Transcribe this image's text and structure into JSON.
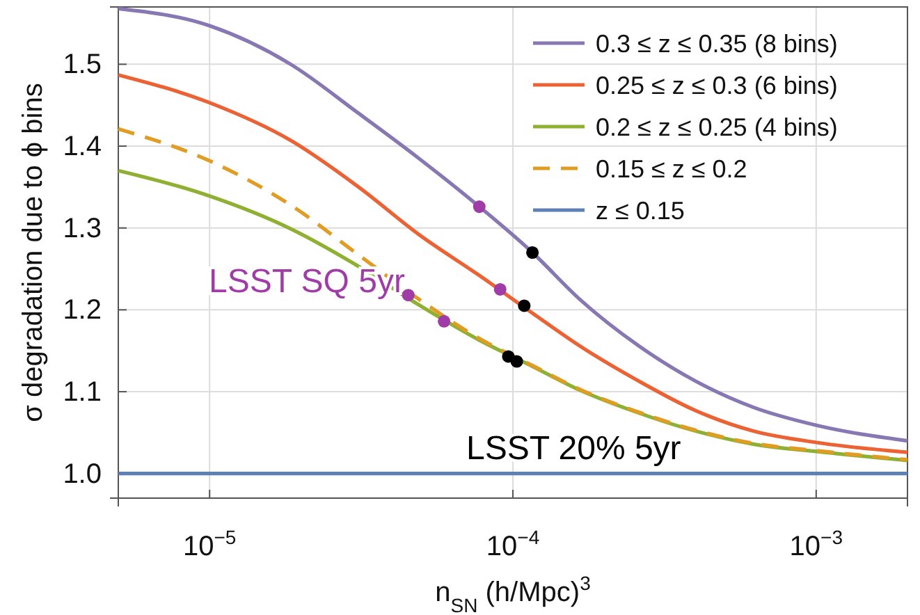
{
  "chart_data": {
    "type": "line",
    "xlabel": "n$_{SN}$ (h/Mpc)$^{3}$",
    "ylabel": "σ degradation due to ϕ bins",
    "log": "x",
    "xlim": [
      5e-06,
      0.002
    ],
    "ylim": [
      0.97,
      1.57
    ],
    "xticks": [
      {
        "value": 1e-05,
        "label": "10$^{−5}$"
      },
      {
        "value": 0.0001,
        "label": "10$^{−4}$"
      },
      {
        "value": 0.001,
        "label": "10$^{−3}$"
      }
    ],
    "yticks": [
      {
        "value": 1,
        "label": "1.0"
      },
      1.1,
      1.2,
      1.3,
      1.4,
      1.5
    ],
    "grid": true,
    "legend": "top right",
    "x": [
      5e-06,
      1e-05,
      1.85e-05,
      3.1e-05,
      4.9e-05,
      7.75e-05,
      0.000116,
      0.000166,
      0.00026,
      0.0004,
      0.00062,
      0.001,
      0.002
    ],
    "series": [
      {
        "name": "0.3 ≤ z ≤ 0.35 (8 bins)",
        "color": "#8778b3",
        "values": [
          1.568,
          1.547,
          1.5,
          1.44,
          1.385,
          1.326,
          1.27,
          1.213,
          1.156,
          1.113,
          1.081,
          1.059,
          1.04
        ]
      },
      {
        "name": "0.25 ≤ z ≤ 0.3 (6 bins)",
        "color": "#eb6235",
        "values": [
          1.487,
          1.453,
          1.407,
          1.35,
          1.292,
          1.242,
          1.196,
          1.156,
          1.113,
          1.077,
          1.052,
          1.038,
          1.026
        ]
      },
      {
        "name": "0.2 ≤ z ≤ 0.25 (4 bins)",
        "color": "#8fb032",
        "values": [
          1.37,
          1.339,
          1.299,
          1.253,
          1.206,
          1.163,
          1.131,
          1.102,
          1.074,
          1.052,
          1.036,
          1.027,
          1.016
        ]
      },
      {
        "name": "0.15 ≤ z ≤ 0.2",
        "color": "#e19c24",
        "line_style": "dashed",
        "values": [
          1.421,
          1.382,
          1.328,
          1.267,
          1.213,
          1.165,
          1.132,
          1.103,
          1.075,
          1.053,
          1.037,
          1.028,
          1.017
        ]
      },
      {
        "name": "z ≤ 0.15",
        "color": "#5e81b5",
        "x": [
          5e-06,
          0.002
        ],
        "values": [
          1.0,
          1.0
        ]
      },
      {
        "name": "LSST SQ 5yr",
        "type": "scatter",
        "marker": "circle",
        "color": "#a03ca8",
        "x": [
          4.52e-05,
          5.93e-05,
          7.75e-05,
          9.08e-05
        ],
        "values": [
          1.218,
          1.186,
          1.326,
          1.225
        ]
      },
      {
        "name": "LSST 20% 5yr",
        "type": "scatter",
        "marker": "circle",
        "color": "#000000",
        "x": [
          9.66e-05,
          0.000103,
          0.000109,
          0.000116
        ],
        "values": [
          1.143,
          1.137,
          1.205,
          1.27
        ]
      }
    ]
  }
}
